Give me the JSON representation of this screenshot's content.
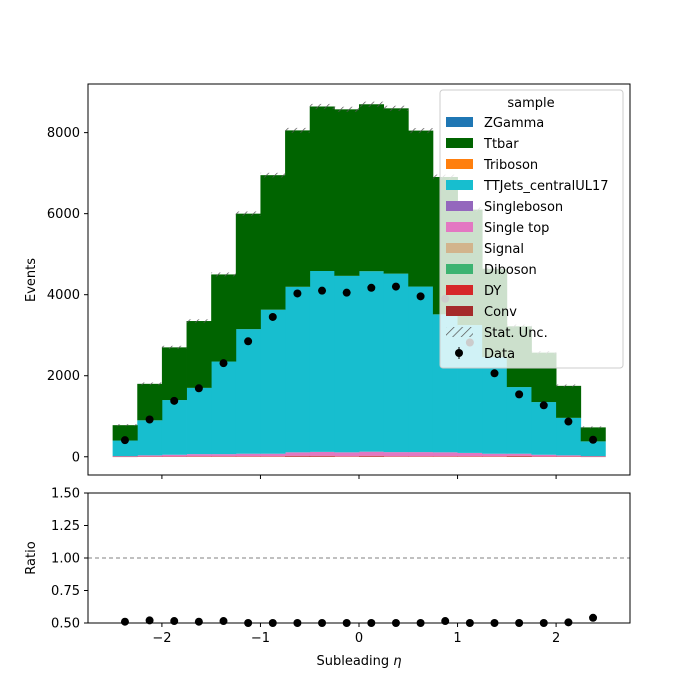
{
  "chart_data": [
    {
      "type": "bar",
      "panel": "main",
      "stacked": true,
      "histogram": true,
      "bin_edges": [
        -2.5,
        -2.25,
        -2.0,
        -1.75,
        -1.5,
        -1.25,
        -1.0,
        -0.75,
        -0.5,
        -0.25,
        0.0,
        0.25,
        0.5,
        0.75,
        1.0,
        1.25,
        1.5,
        1.75,
        2.0,
        2.25,
        2.5
      ],
      "xlim": [
        -2.75,
        2.75
      ],
      "ylim": [
        -450,
        9200
      ],
      "ylabel": "Events",
      "xticks": [
        -2,
        -1,
        0,
        1,
        2
      ],
      "xtick_labels": [
        "−2",
        "−1",
        "0",
        "1",
        "2"
      ],
      "yticks": [
        0,
        2000,
        4000,
        6000,
        8000
      ],
      "ytick_labels": [
        "0",
        "2000",
        "4000",
        "6000",
        "8000"
      ],
      "series": [
        {
          "name": "Conv",
          "color": "#a52a2a",
          "values": [
            0,
            0,
            0,
            0,
            0,
            0,
            0,
            10,
            10,
            0,
            10,
            0,
            0,
            0,
            0,
            0,
            10,
            0,
            0,
            0
          ]
        },
        {
          "name": "DY",
          "color": "#d62728",
          "values": [
            5,
            10,
            10,
            15,
            15,
            15,
            15,
            15,
            15,
            15,
            15,
            15,
            15,
            15,
            15,
            15,
            15,
            10,
            10,
            5
          ]
        },
        {
          "name": "Diboson",
          "color": "#3cb371",
          "values": [
            0,
            0,
            0,
            0,
            0,
            0,
            0,
            0,
            0,
            0,
            0,
            0,
            0,
            0,
            0,
            0,
            0,
            0,
            0,
            0
          ]
        },
        {
          "name": "Signal",
          "color": "#d2b48c",
          "values": [
            0,
            0,
            0,
            0,
            0,
            0,
            0,
            0,
            0,
            0,
            0,
            0,
            0,
            0,
            0,
            0,
            0,
            0,
            0,
            0
          ]
        },
        {
          "name": "Single top",
          "color": "#e377c2",
          "values": [
            10,
            25,
            40,
            50,
            50,
            60,
            60,
            85,
            95,
            95,
            100,
            100,
            100,
            95,
            80,
            60,
            50,
            40,
            25,
            10
          ]
        },
        {
          "name": "Singleboson",
          "color": "#9467bd",
          "values": [
            0,
            0,
            0,
            0,
            0,
            0,
            0,
            0,
            0,
            0,
            0,
            0,
            0,
            0,
            0,
            0,
            0,
            0,
            0,
            0
          ]
        },
        {
          "name": "TTJets_centralUL17",
          "color": "#17becf",
          "values": [
            385,
            865,
            1350,
            1635,
            2285,
            3075,
            3555,
            4085,
            4465,
            4355,
            4455,
            4405,
            4085,
            3405,
            3155,
            2385,
            1645,
            1300,
            925,
            365
          ]
        },
        {
          "name": "Triboson",
          "color": "#ff7f0e",
          "values": [
            0,
            0,
            0,
            0,
            0,
            0,
            0,
            0,
            0,
            0,
            0,
            0,
            0,
            0,
            0,
            0,
            0,
            0,
            0,
            0
          ]
        },
        {
          "name": "Ttbar",
          "color": "#006400",
          "values": [
            380,
            900,
            1300,
            1650,
            2150,
            2850,
            3320,
            3860,
            4060,
            4110,
            4120,
            4080,
            3850,
            3390,
            2850,
            2180,
            1500,
            1220,
            790,
            345
          ]
        },
        {
          "name": "ZGamma",
          "color": "#1f77b4",
          "values": [
            0,
            0,
            0,
            0,
            0,
            0,
            0,
            0,
            0,
            0,
            0,
            0,
            0,
            0,
            0,
            0,
            0,
            0,
            0,
            0
          ]
        }
      ],
      "data_points": {
        "name": "Data",
        "x": [
          -2.375,
          -2.125,
          -1.875,
          -1.625,
          -1.375,
          -1.125,
          -0.875,
          -0.625,
          -0.375,
          -0.125,
          0.125,
          0.375,
          0.625,
          0.875,
          1.125,
          1.375,
          1.625,
          1.875,
          2.125,
          2.375
        ],
        "y": [
          410,
          920,
          1380,
          1690,
          2310,
          2850,
          3450,
          4030,
          4100,
          4050,
          4170,
          4200,
          3960,
          3900,
          2820,
          2060,
          1540,
          1270,
          870,
          420
        ]
      },
      "legend": {
        "title": "sample",
        "placement": "upper right",
        "entries": [
          {
            "label": "ZGamma",
            "kind": "patch",
            "color": "#1f77b4"
          },
          {
            "label": "Ttbar",
            "kind": "patch",
            "color": "#006400"
          },
          {
            "label": "Triboson",
            "kind": "patch",
            "color": "#ff7f0e"
          },
          {
            "label": "TTJets_centralUL17",
            "kind": "patch",
            "color": "#17becf"
          },
          {
            "label": "Singleboson",
            "kind": "patch",
            "color": "#9467bd"
          },
          {
            "label": "Single top",
            "kind": "patch",
            "color": "#e377c2"
          },
          {
            "label": "Signal",
            "kind": "patch",
            "color": "#d2b48c"
          },
          {
            "label": "Diboson",
            "kind": "patch",
            "color": "#3cb371"
          },
          {
            "label": "DY",
            "kind": "patch",
            "color": "#d62728"
          },
          {
            "label": "Conv",
            "kind": "patch",
            "color": "#a52a2a"
          },
          {
            "label": "Stat. Unc.",
            "kind": "hatch",
            "color": "#555555"
          },
          {
            "label": "Data",
            "kind": "errorbar",
            "color": "#000000"
          }
        ]
      }
    },
    {
      "type": "scatter",
      "panel": "ratio",
      "x": [
        -2.375,
        -2.125,
        -1.875,
        -1.625,
        -1.375,
        -1.125,
        -0.875,
        -0.625,
        -0.375,
        -0.125,
        0.125,
        0.375,
        0.625,
        0.875,
        1.125,
        1.375,
        1.625,
        1.875,
        2.125,
        2.375
      ],
      "y": [
        0.51,
        0.52,
        0.515,
        0.51,
        0.515,
        0.49,
        0.5,
        0.5,
        0.49,
        0.49,
        0.495,
        0.5,
        0.5,
        0.515,
        0.5,
        0.49,
        0.495,
        0.5,
        0.505,
        0.54
      ],
      "reference_line": 1.0,
      "xlim": [
        -2.75,
        2.75
      ],
      "ylim": [
        0.5,
        1.5
      ],
      "ylabel": "Ratio",
      "xlabel": "Subleading η",
      "xlabel_main": "Subleading ",
      "xlabel_symbol": "η",
      "xticks": [
        -2,
        -1,
        0,
        1,
        2
      ],
      "xtick_labels": [
        "−2",
        "−1",
        "0",
        "1",
        "2"
      ],
      "yticks": [
        0.5,
        0.75,
        1.0,
        1.25,
        1.5
      ],
      "ytick_labels": [
        "0.50",
        "0.75",
        "1.00",
        "1.25",
        "1.50"
      ]
    }
  ]
}
